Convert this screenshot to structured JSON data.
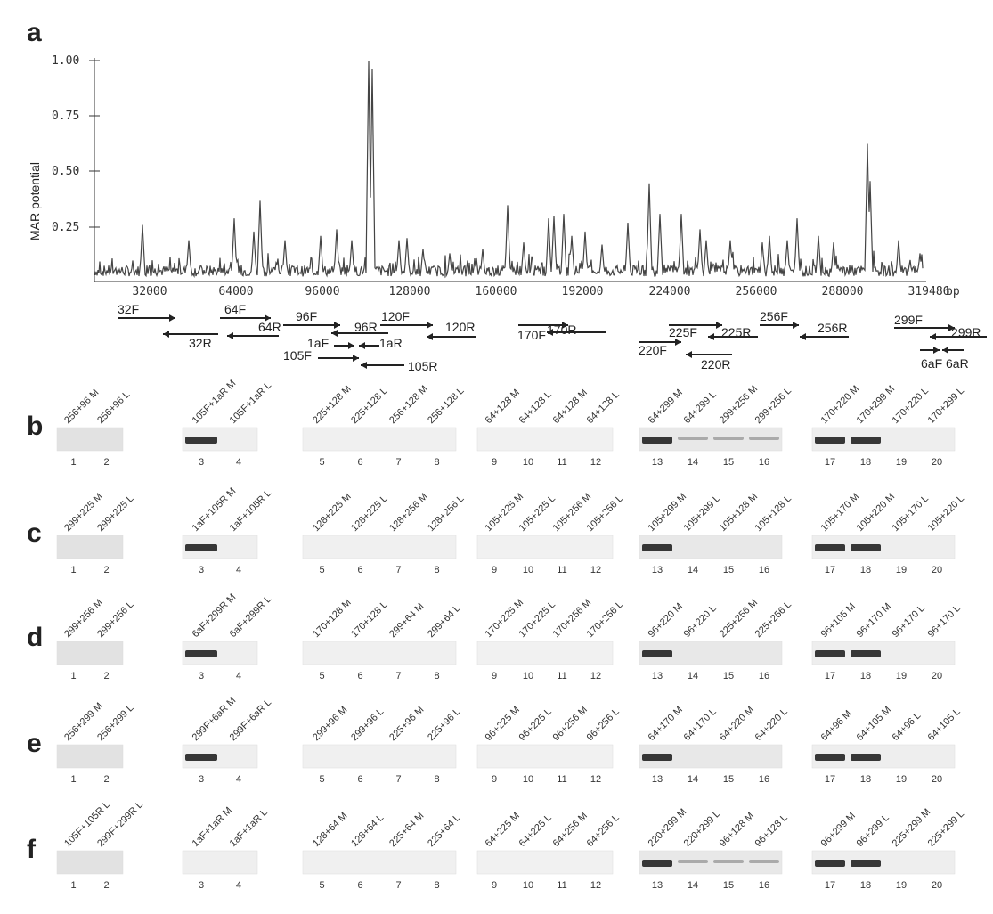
{
  "panel_a": {
    "letter": "a",
    "ylabel": "MAR potential",
    "yticks": [
      "1.00",
      "0.75",
      "0.50",
      "0.25"
    ],
    "xticks": [
      "32000",
      "64000",
      "96000",
      "128000",
      "160000",
      "192000",
      "224000",
      "256000",
      "288000",
      "319486"
    ],
    "xunit": "bp",
    "primers": [
      {
        "label": "32F"
      },
      {
        "label": "32R"
      },
      {
        "label": "64F"
      },
      {
        "label": "64R"
      },
      {
        "label": "96F"
      },
      {
        "label": "96R"
      },
      {
        "label": "120F"
      },
      {
        "label": "120R"
      },
      {
        "label": "1aF"
      },
      {
        "label": "1aR"
      },
      {
        "label": "105F"
      },
      {
        "label": "105R"
      },
      {
        "label": "170F"
      },
      {
        "label": "170R"
      },
      {
        "label": "225F"
      },
      {
        "label": "225R"
      },
      {
        "label": "256F"
      },
      {
        "label": "256R"
      },
      {
        "label": "220F"
      },
      {
        "label": "220R"
      },
      {
        "label": "299F"
      },
      {
        "label": "299R"
      },
      {
        "label": "6aF"
      },
      {
        "label": "6aR"
      }
    ]
  },
  "gel_panels": [
    {
      "letter": "b",
      "groups": [
        {
          "lanes": [
            "256+96 M",
            "256+96 L"
          ],
          "nums": [
            "1",
            "2"
          ],
          "bands": []
        },
        {
          "lanes": [
            "105F+1aR M",
            "105F+1aR L"
          ],
          "nums": [
            "3",
            "4"
          ],
          "bands": [
            1
          ]
        },
        {
          "lanes": [
            "225+128 M",
            "225+128 L",
            "256+128 M",
            "256+128 L"
          ],
          "nums": [
            "5",
            "6",
            "7",
            "8"
          ],
          "bands": []
        },
        {
          "lanes": [
            "64+128 M",
            "64+128 L",
            "64+128 M",
            "64+128 L"
          ],
          "nums": [
            "9",
            "10",
            "11",
            "12"
          ],
          "bands": []
        },
        {
          "lanes": [
            "64+299 M",
            "64+299 L",
            "299+256 M",
            "299+256 L"
          ],
          "nums": [
            "13",
            "14",
            "15",
            "16"
          ],
          "bands": [
            1,
            2,
            3,
            4
          ]
        },
        {
          "lanes": [
            "170+220 M",
            "170+299 M",
            "170+220 L",
            "170+299 L"
          ],
          "nums": [
            "17",
            "18",
            "19",
            "20"
          ],
          "bands": [
            1,
            2
          ]
        }
      ]
    },
    {
      "letter": "c",
      "groups": [
        {
          "lanes": [
            "299+225 M",
            "299+225 L"
          ],
          "nums": [
            "1",
            "2"
          ],
          "bands": []
        },
        {
          "lanes": [
            "1aF+105R M",
            "1aF+105R L"
          ],
          "nums": [
            "3",
            "4"
          ],
          "bands": [
            1
          ]
        },
        {
          "lanes": [
            "128+225 M",
            "128+225 L",
            "128+256 M",
            "128+256 L"
          ],
          "nums": [
            "5",
            "6",
            "7",
            "8"
          ],
          "bands": []
        },
        {
          "lanes": [
            "105+225 M",
            "105+225 L",
            "105+256 M",
            "105+256 L"
          ],
          "nums": [
            "9",
            "10",
            "11",
            "12"
          ],
          "bands": []
        },
        {
          "lanes": [
            "105+299 M",
            "105+299 L",
            "105+128 M",
            "105+128 L"
          ],
          "nums": [
            "13",
            "14",
            "15",
            "16"
          ],
          "bands": [
            1
          ]
        },
        {
          "lanes": [
            "105+170 M",
            "105+220 M",
            "105+170 L",
            "105+220 L"
          ],
          "nums": [
            "17",
            "18",
            "19",
            "20"
          ],
          "bands": [
            1,
            2
          ]
        }
      ]
    },
    {
      "letter": "d",
      "groups": [
        {
          "lanes": [
            "299+256 M",
            "299+256 L"
          ],
          "nums": [
            "1",
            "2"
          ],
          "bands": []
        },
        {
          "lanes": [
            "6aF+299R M",
            "6aF+299R L"
          ],
          "nums": [
            "3",
            "4"
          ],
          "bands": [
            1
          ]
        },
        {
          "lanes": [
            "170+128 M",
            "170+128 L",
            "299+64 M",
            "299+64 L"
          ],
          "nums": [
            "5",
            "6",
            "7",
            "8"
          ],
          "bands": []
        },
        {
          "lanes": [
            "170+225 M",
            "170+225 L",
            "170+256 M",
            "170+256 L"
          ],
          "nums": [
            "9",
            "10",
            "11",
            "12"
          ],
          "bands": []
        },
        {
          "lanes": [
            "96+220 M",
            "96+220 L",
            "225+256 M",
            "225+256 L"
          ],
          "nums": [
            "13",
            "14",
            "15",
            "16"
          ],
          "bands": [
            1
          ]
        },
        {
          "lanes": [
            "96+105 M",
            "96+170 M",
            "96+170 L",
            "96+170 L"
          ],
          "nums": [
            "17",
            "18",
            "19",
            "20"
          ],
          "bands": [
            1,
            2
          ]
        }
      ]
    },
    {
      "letter": "e",
      "groups": [
        {
          "lanes": [
            "256+299 M",
            "256+299 L"
          ],
          "nums": [
            "1",
            "2"
          ],
          "bands": []
        },
        {
          "lanes": [
            "299F+6aR M",
            "299F+6aR L"
          ],
          "nums": [
            "3",
            "4"
          ],
          "bands": [
            1
          ]
        },
        {
          "lanes": [
            "299+96 M",
            "299+96 L",
            "225+96 M",
            "225+96 L"
          ],
          "nums": [
            "5",
            "6",
            "7",
            "8"
          ],
          "bands": []
        },
        {
          "lanes": [
            "96+225 M",
            "96+225 L",
            "96+256 M",
            "96+256 L"
          ],
          "nums": [
            "9",
            "10",
            "11",
            "12"
          ],
          "bands": []
        },
        {
          "lanes": [
            "64+170 M",
            "64+170 L",
            "64+220 M",
            "64+220 L"
          ],
          "nums": [
            "13",
            "14",
            "15",
            "16"
          ],
          "bands": [
            1
          ]
        },
        {
          "lanes": [
            "64+96 M",
            "64+105 M",
            "64+96 L",
            "64+105 L"
          ],
          "nums": [
            "17",
            "18",
            "19",
            "20"
          ],
          "bands": [
            1,
            2
          ]
        }
      ]
    },
    {
      "letter": "f",
      "groups": [
        {
          "lanes": [
            "105F+105R L",
            "299F+299R L"
          ],
          "nums": [
            "1",
            "2"
          ],
          "bands": []
        },
        {
          "lanes": [
            "1aF+1aR M",
            "1aF+1aR L"
          ],
          "nums": [
            "3",
            "4"
          ],
          "bands": []
        },
        {
          "lanes": [
            "128+64 M",
            "128+64 L",
            "225+64 M",
            "225+64 L"
          ],
          "nums": [
            "5",
            "6",
            "7",
            "8"
          ],
          "bands": []
        },
        {
          "lanes": [
            "64+225 M",
            "64+225 L",
            "64+256 M",
            "64+256 L"
          ],
          "nums": [
            "9",
            "10",
            "11",
            "12"
          ],
          "bands": []
        },
        {
          "lanes": [
            "220+299 M",
            "220+299 L",
            "96+128 M",
            "96+128 L"
          ],
          "nums": [
            "13",
            "14",
            "15",
            "16"
          ],
          "bands": [
            1,
            2,
            3,
            4
          ]
        },
        {
          "lanes": [
            "96+299 M",
            "96+299 L",
            "225+299 M",
            "225+299 L"
          ],
          "nums": [
            "17",
            "18",
            "19",
            "20"
          ],
          "bands": [
            1,
            2
          ]
        }
      ]
    }
  ]
}
